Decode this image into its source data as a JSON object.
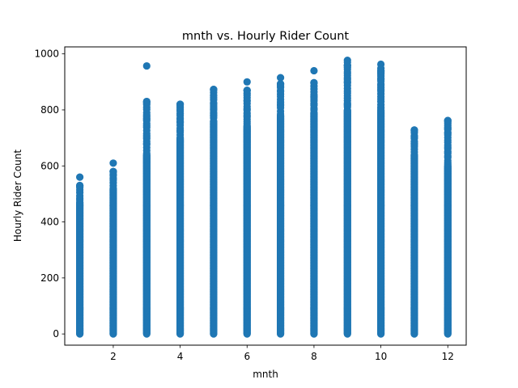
{
  "chart_data": {
    "type": "scatter",
    "title": "mnth vs. Hourly Rider Count",
    "xlabel": "mnth",
    "ylabel": "Hourly Rider Count",
    "xlim": [
      0.55,
      12.55
    ],
    "ylim": [
      -40,
      1025
    ],
    "xticks": [
      2,
      4,
      6,
      8,
      10,
      12
    ],
    "yticks": [
      0,
      200,
      400,
      600,
      800,
      1000
    ],
    "grid": false,
    "marker_color": "#1f77b4",
    "months": [
      1,
      2,
      3,
      4,
      5,
      6,
      7,
      8,
      9,
      10,
      11,
      12
    ],
    "dense_range_max": [
      470,
      520,
      640,
      700,
      760,
      740,
      780,
      790,
      800,
      800,
      640,
      600
    ],
    "sparse_range_max": [
      530,
      580,
      830,
      820,
      873,
      870,
      893,
      897,
      960,
      940,
      728,
      762
    ],
    "outliers": [
      {
        "x": 1,
        "y": 560
      },
      {
        "x": 2,
        "y": 610
      },
      {
        "x": 3,
        "y": 957
      },
      {
        "x": 6,
        "y": 900
      },
      {
        "x": 7,
        "y": 915
      },
      {
        "x": 8,
        "y": 940
      },
      {
        "x": 9,
        "y": 977
      },
      {
        "x": 9,
        "y": 970
      },
      {
        "x": 10,
        "y": 963
      },
      {
        "x": 10,
        "y": 948
      }
    ]
  }
}
